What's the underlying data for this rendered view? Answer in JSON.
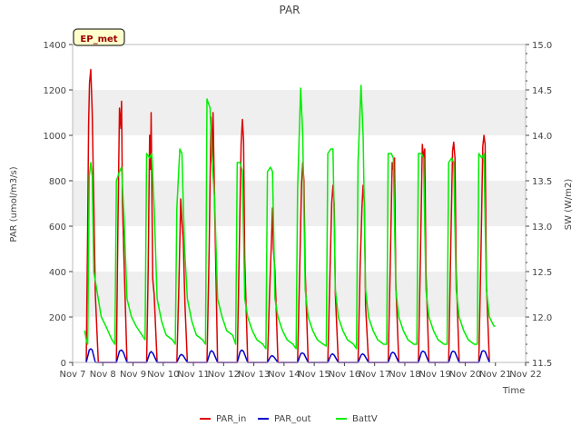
{
  "chart_data": {
    "type": "line",
    "title": "PAR",
    "xlabel": "Time",
    "ylabel": "PAR (umol/m3/s)",
    "y2label": "SW (W/m2)",
    "badge": "EP_met",
    "xlim": [
      7,
      22
    ],
    "ylim": [
      0,
      1400
    ],
    "y2lim": [
      11.5,
      15.0
    ],
    "x_tick_labels": [
      "Nov 7",
      "Nov 8",
      "Nov 9",
      "Nov 10",
      "Nov 11",
      "Nov 12",
      "Nov 13",
      "Nov 14",
      "Nov 15",
      "Nov 16",
      "Nov 17",
      "Nov 18",
      "Nov 19",
      "Nov 20",
      "Nov 21",
      "Nov 22"
    ],
    "y_ticks": [
      0,
      200,
      400,
      600,
      800,
      1000,
      1200,
      1400
    ],
    "y2_ticks": [
      11.5,
      12.0,
      12.5,
      13.0,
      13.5,
      14.0,
      14.5,
      15.0
    ],
    "grid": "horizontal bands",
    "legend_position": "bottom-center",
    "colors": {
      "PAR_in": "#dd0000",
      "PAR_out": "#0000cc",
      "BattV": "#00ee00",
      "band": "#efefef"
    },
    "series": [
      {
        "name": "PAR_in",
        "axis": "left",
        "x": [
          7.45,
          7.5,
          7.53,
          7.56,
          7.6,
          7.65,
          7.7,
          7.75,
          7.85,
          8.45,
          8.5,
          8.55,
          8.6,
          8.62,
          8.65,
          8.7,
          8.8,
          9.45,
          9.5,
          9.55,
          9.58,
          9.6,
          9.65,
          9.7,
          9.8,
          10.45,
          10.52,
          10.58,
          10.62,
          10.66,
          10.72,
          10.8,
          11.45,
          11.52,
          11.58,
          11.62,
          11.65,
          11.7,
          11.8,
          12.45,
          12.52,
          12.58,
          12.62,
          12.66,
          12.7,
          12.8,
          13.45,
          13.52,
          13.58,
          13.62,
          13.65,
          13.7,
          13.8,
          14.45,
          14.52,
          14.58,
          14.62,
          14.66,
          14.7,
          14.8,
          15.45,
          15.52,
          15.58,
          15.62,
          15.66,
          15.7,
          15.8,
          16.45,
          16.52,
          16.58,
          16.62,
          16.66,
          16.7,
          16.8,
          17.45,
          17.52,
          17.58,
          17.62,
          17.66,
          17.7,
          17.8,
          18.45,
          18.52,
          18.58,
          18.62,
          18.66,
          18.7,
          18.8,
          19.45,
          19.52,
          19.58,
          19.62,
          19.66,
          19.7,
          19.8,
          20.45,
          20.52,
          20.58,
          20.62,
          20.66,
          20.7,
          20.8
        ],
        "y": [
          0,
          600,
          1050,
          1230,
          1290,
          1100,
          700,
          300,
          0,
          0,
          600,
          1120,
          1030,
          1150,
          700,
          450,
          0,
          0,
          400,
          1000,
          850,
          1100,
          370,
          300,
          0,
          0,
          350,
          720,
          620,
          540,
          250,
          0,
          0,
          500,
          1080,
          880,
          1100,
          700,
          0,
          0,
          500,
          960,
          1070,
          980,
          450,
          0,
          0,
          300,
          520,
          680,
          500,
          400,
          0,
          0,
          420,
          790,
          880,
          800,
          400,
          0,
          0,
          380,
          700,
          780,
          700,
          300,
          0,
          0,
          420,
          680,
          780,
          700,
          250,
          0,
          0,
          450,
          880,
          850,
          900,
          350,
          0,
          0,
          480,
          960,
          900,
          940,
          400,
          0,
          0,
          500,
          930,
          970,
          900,
          400,
          0,
          0,
          480,
          950,
          1000,
          960,
          350,
          0
        ]
      },
      {
        "name": "PAR_out",
        "axis": "left",
        "x": [
          7.45,
          7.55,
          7.6,
          7.65,
          7.75,
          8.45,
          8.55,
          8.62,
          8.68,
          8.8,
          9.45,
          9.55,
          9.6,
          9.66,
          9.8,
          10.45,
          10.55,
          10.6,
          10.66,
          10.8,
          11.45,
          11.55,
          11.6,
          11.66,
          11.8,
          12.45,
          12.55,
          12.6,
          12.66,
          12.8,
          13.45,
          13.55,
          13.6,
          13.66,
          13.8,
          14.45,
          14.55,
          14.6,
          14.66,
          14.8,
          15.45,
          15.55,
          15.6,
          15.66,
          15.8,
          16.45,
          16.55,
          16.6,
          16.66,
          16.8,
          17.45,
          17.55,
          17.6,
          17.66,
          17.8,
          18.45,
          18.55,
          18.6,
          18.66,
          18.8,
          19.45,
          19.55,
          19.6,
          19.66,
          19.8,
          20.45,
          20.55,
          20.6,
          20.66,
          20.8
        ],
        "y": [
          0,
          55,
          60,
          55,
          0,
          0,
          50,
          55,
          45,
          0,
          0,
          40,
          48,
          40,
          0,
          0,
          30,
          35,
          30,
          0,
          0,
          45,
          52,
          45,
          0,
          0,
          48,
          55,
          48,
          0,
          0,
          25,
          30,
          25,
          0,
          0,
          38,
          42,
          38,
          0,
          0,
          32,
          38,
          32,
          0,
          0,
          32,
          38,
          32,
          0,
          0,
          40,
          45,
          40,
          0,
          0,
          45,
          50,
          45,
          0,
          0,
          45,
          50,
          45,
          0,
          0,
          48,
          52,
          48,
          0
        ]
      },
      {
        "name": "BattV",
        "axis": "right",
        "x": [
          7.4,
          7.45,
          7.5,
          7.55,
          7.6,
          7.65,
          7.7,
          7.8,
          7.95,
          8.1,
          8.3,
          8.4,
          8.45,
          8.55,
          8.62,
          8.7,
          8.8,
          8.95,
          9.1,
          9.3,
          9.4,
          9.45,
          9.55,
          9.62,
          9.7,
          9.8,
          9.95,
          10.1,
          10.3,
          10.4,
          10.45,
          10.55,
          10.62,
          10.7,
          10.8,
          10.95,
          11.1,
          11.3,
          11.4,
          11.45,
          11.55,
          11.62,
          11.7,
          11.8,
          11.95,
          12.1,
          12.3,
          12.4,
          12.45,
          12.55,
          12.62,
          12.7,
          12.8,
          12.95,
          13.1,
          13.3,
          13.4,
          13.45,
          13.55,
          13.62,
          13.7,
          13.8,
          13.95,
          14.1,
          14.3,
          14.4,
          14.45,
          14.55,
          14.62,
          14.7,
          14.8,
          14.95,
          15.1,
          15.3,
          15.4,
          15.45,
          15.55,
          15.62,
          15.7,
          15.8,
          15.95,
          16.1,
          16.3,
          16.4,
          16.45,
          16.55,
          16.62,
          16.7,
          16.8,
          16.95,
          17.1,
          17.3,
          17.4,
          17.45,
          17.55,
          17.62,
          17.7,
          17.8,
          17.95,
          18.1,
          18.3,
          18.4,
          18.45,
          18.55,
          18.62,
          18.7,
          18.8,
          18.95,
          19.1,
          19.3,
          19.4,
          19.45,
          19.55,
          19.62,
          19.7,
          19.8,
          19.95,
          20.1,
          20.3,
          20.4,
          20.45,
          20.55,
          20.62,
          20.7,
          20.8,
          20.95,
          21.0
        ],
        "y": [
          11.85,
          11.75,
          11.7,
          13.55,
          13.7,
          13.55,
          12.5,
          12.3,
          12.0,
          11.9,
          11.75,
          11.7,
          13.5,
          13.6,
          13.65,
          13.1,
          12.2,
          12.0,
          11.9,
          11.8,
          11.75,
          13.8,
          13.75,
          13.8,
          13.2,
          12.2,
          11.95,
          11.8,
          11.75,
          11.7,
          13.2,
          13.85,
          13.8,
          12.8,
          12.2,
          11.95,
          11.8,
          11.75,
          11.7,
          14.4,
          14.3,
          13.7,
          13.3,
          12.2,
          12.0,
          11.85,
          11.8,
          11.7,
          13.7,
          13.7,
          13.6,
          12.2,
          12.0,
          11.85,
          11.75,
          11.7,
          11.65,
          13.6,
          13.65,
          13.6,
          12.2,
          12.0,
          11.85,
          11.75,
          11.7,
          11.65,
          13.4,
          14.52,
          14.0,
          12.3,
          12.0,
          11.85,
          11.75,
          11.7,
          11.68,
          13.8,
          13.85,
          13.85,
          12.3,
          12.0,
          11.85,
          11.75,
          11.7,
          11.65,
          13.7,
          14.55,
          14.0,
          12.3,
          12.0,
          11.85,
          11.75,
          11.7,
          11.7,
          13.8,
          13.8,
          13.75,
          12.3,
          12.0,
          11.85,
          11.75,
          11.7,
          11.7,
          13.8,
          13.8,
          13.75,
          12.3,
          12.0,
          11.85,
          11.75,
          11.7,
          11.7,
          13.7,
          13.75,
          13.7,
          12.3,
          12.0,
          11.85,
          11.75,
          11.7,
          11.7,
          13.8,
          13.75,
          13.8,
          12.3,
          12.0,
          11.9,
          11.9
        ]
      }
    ]
  }
}
